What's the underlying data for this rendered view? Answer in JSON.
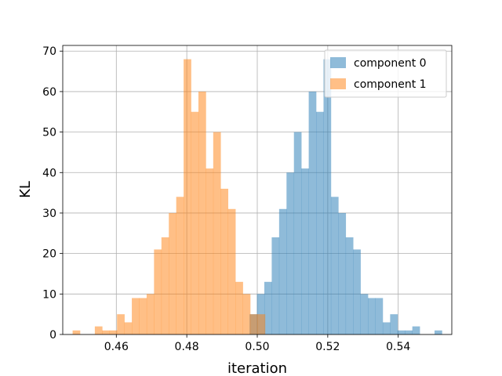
{
  "chart_data": {
    "type": "bar",
    "subtype": "histogram",
    "xlabel": "iteration",
    "ylabel": "KL",
    "xlim": [
      0.4448,
      0.5552
    ],
    "ylim": [
      0,
      71.4
    ],
    "grid": true,
    "legend_position": "top-right",
    "x_ticks": [
      0.46,
      0.48,
      0.5,
      0.52,
      0.54
    ],
    "x_tick_labels": [
      "0.46",
      "0.48",
      "0.50",
      "0.52",
      "0.54"
    ],
    "y_ticks": [
      0,
      10,
      20,
      30,
      40,
      50,
      60,
      70
    ],
    "y_tick_labels": [
      "0",
      "10",
      "20",
      "30",
      "40",
      "50",
      "60",
      "70"
    ],
    "series": [
      {
        "name": "component 0",
        "color": "#1f77b4",
        "opacity": 0.5,
        "bins": [
          [
            0.4978,
            0.4999,
            5
          ],
          [
            0.4999,
            0.502,
            10
          ],
          [
            0.502,
            0.5041,
            13
          ],
          [
            0.5041,
            0.5062,
            24
          ],
          [
            0.5062,
            0.5083,
            31
          ],
          [
            0.5083,
            0.5104,
            40
          ],
          [
            0.5104,
            0.5125,
            50
          ],
          [
            0.5125,
            0.5146,
            41
          ],
          [
            0.5146,
            0.5167,
            60
          ],
          [
            0.5167,
            0.5188,
            55
          ],
          [
            0.5188,
            0.5209,
            68
          ],
          [
            0.5209,
            0.523,
            34
          ],
          [
            0.523,
            0.5251,
            30
          ],
          [
            0.5251,
            0.5272,
            24
          ],
          [
            0.5272,
            0.5293,
            21
          ],
          [
            0.5293,
            0.5314,
            10
          ],
          [
            0.5314,
            0.5335,
            9
          ],
          [
            0.5335,
            0.5356,
            9
          ],
          [
            0.5356,
            0.5377,
            3
          ],
          [
            0.5377,
            0.5398,
            5
          ],
          [
            0.5398,
            0.5419,
            1
          ],
          [
            0.5419,
            0.544,
            1
          ],
          [
            0.544,
            0.5461,
            2
          ],
          [
            0.5461,
            0.5482,
            0
          ],
          [
            0.5482,
            0.5503,
            0
          ],
          [
            0.5503,
            0.5524,
            1
          ]
        ]
      },
      {
        "name": "component 1",
        "color": "#ff7f0e",
        "opacity": 0.5,
        "bins": [
          [
            0.4476,
            0.4497,
            1
          ],
          [
            0.4497,
            0.4518,
            0
          ],
          [
            0.4518,
            0.4539,
            0
          ],
          [
            0.4539,
            0.456,
            2
          ],
          [
            0.456,
            0.4581,
            1
          ],
          [
            0.4581,
            0.4602,
            1
          ],
          [
            0.4602,
            0.4623,
            5
          ],
          [
            0.4623,
            0.4644,
            3
          ],
          [
            0.4644,
            0.4665,
            9
          ],
          [
            0.4665,
            0.4686,
            9
          ],
          [
            0.4686,
            0.4707,
            10
          ],
          [
            0.4707,
            0.4728,
            21
          ],
          [
            0.4728,
            0.4749,
            24
          ],
          [
            0.4749,
            0.477,
            30
          ],
          [
            0.477,
            0.4791,
            34
          ],
          [
            0.4791,
            0.4812,
            68
          ],
          [
            0.4812,
            0.4833,
            55
          ],
          [
            0.4833,
            0.4854,
            60
          ],
          [
            0.4854,
            0.4875,
            41
          ],
          [
            0.4875,
            0.4896,
            50
          ],
          [
            0.4896,
            0.4917,
            36
          ],
          [
            0.4917,
            0.4938,
            31
          ],
          [
            0.4938,
            0.4959,
            13
          ],
          [
            0.4959,
            0.498,
            10
          ],
          [
            0.498,
            0.5001,
            5
          ],
          [
            0.5001,
            0.5022,
            5
          ]
        ]
      }
    ]
  }
}
